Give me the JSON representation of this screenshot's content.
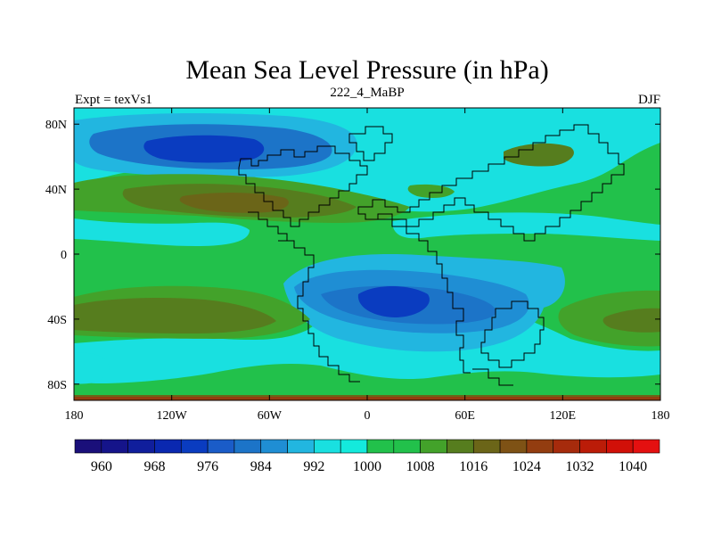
{
  "chart_data": {
    "type": "heatmap",
    "title": "Mean Sea Level Pressure (in hPa)",
    "left_label": "Expt = texVs1",
    "center_label": "222_4_MaBP",
    "right_label": "DJF",
    "x_ticks": [
      "180",
      "120W",
      "60W",
      "0",
      "60E",
      "120E",
      "180"
    ],
    "x_tick_values": [
      -180,
      -120,
      -60,
      0,
      60,
      120,
      180
    ],
    "y_ticks": [
      "80N",
      "40N",
      "0",
      "40S",
      "80S"
    ],
    "y_tick_values": [
      80,
      40,
      0,
      -40,
      -80
    ],
    "xlim": [
      -180,
      180
    ],
    "ylim": [
      -90,
      90
    ],
    "colorbar": {
      "levels": [
        960,
        964,
        968,
        972,
        976,
        980,
        984,
        988,
        992,
        996,
        1000,
        1004,
        1008,
        1012,
        1016,
        1020,
        1024,
        1028,
        1032,
        1036,
        1040
      ],
      "labels": [
        "960",
        "968",
        "976",
        "984",
        "992",
        "1000",
        "1008",
        "1016",
        "1024",
        "1032",
        "1040"
      ],
      "colors": [
        "#1a0f7a",
        "#15148a",
        "#101e9c",
        "#0a28b0",
        "#0a3cc0",
        "#1a5cc8",
        "#1c74c8",
        "#1f8ed4",
        "#22b6e0",
        "#19e0e0",
        "#14eadc",
        "#22c14b",
        "#22c14b",
        "#43a22a",
        "#567d1e",
        "#6b6518",
        "#7e5215",
        "#933d10",
        "#a62b0c",
        "#bb1c08",
        "#d11008",
        "#e41010"
      ]
    }
  }
}
